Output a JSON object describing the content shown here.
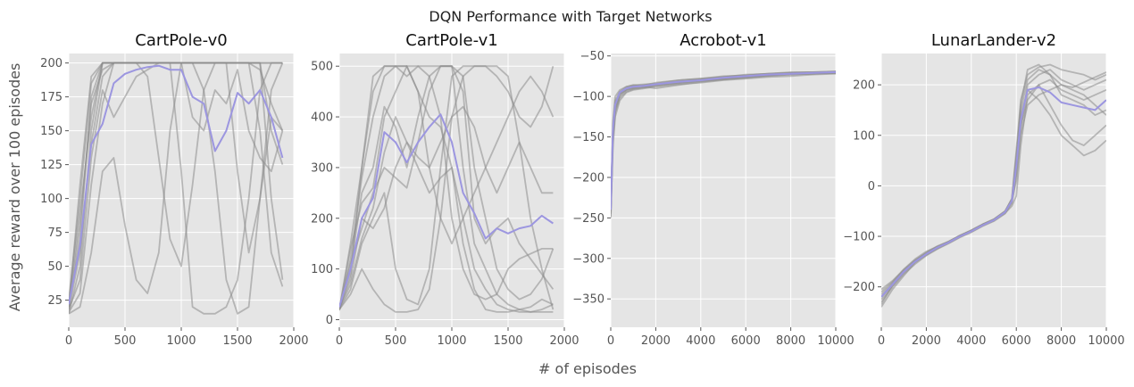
{
  "figure": {
    "suptitle": "DQN Performance with Target Networks",
    "xlabel": "# of episodes",
    "ylabel": "Average reward over 100 episodes"
  },
  "colors": {
    "panel_bg": "#e5e5e5",
    "grid": "#ffffff",
    "run_line": "#8c8c8c",
    "mean_line": "#9c96e0",
    "tick_text": "#555555"
  },
  "chart_data": [
    {
      "type": "line",
      "title": "CartPole-v0",
      "xlim": [
        0,
        2000
      ],
      "ylim": [
        5,
        207
      ],
      "xticks": [
        0,
        500,
        1000,
        1500,
        2000
      ],
      "xtick_labels": [
        "0",
        "500",
        "1000",
        "1500",
        "2000"
      ],
      "yticks": [
        25,
        50,
        75,
        100,
        125,
        150,
        175,
        200
      ],
      "ytick_labels": [
        "25",
        "50",
        "75",
        "100",
        "125",
        "150",
        "175",
        "200"
      ],
      "grid": true,
      "x": [
        0,
        100,
        200,
        300,
        400,
        500,
        600,
        700,
        800,
        900,
        1000,
        1100,
        1200,
        1300,
        1400,
        1500,
        1600,
        1700,
        1800,
        1900
      ],
      "mean_series": {
        "values": [
          22,
          65,
          140,
          155,
          185,
          192,
          195,
          197,
          198,
          195,
          195,
          175,
          170,
          135,
          150,
          178,
          170,
          180,
          160,
          130
        ]
      },
      "runs": [
        {
          "values": [
            20,
            80,
            170,
            195,
            200,
            200,
            200,
            200,
            200,
            200,
            200,
            200,
            200,
            200,
            200,
            200,
            200,
            200,
            200,
            200
          ]
        },
        {
          "values": [
            18,
            60,
            140,
            190,
            200,
            200,
            200,
            200,
            200,
            200,
            200,
            200,
            200,
            200,
            200,
            200,
            200,
            195,
            170,
            150
          ]
        },
        {
          "values": [
            16,
            30,
            110,
            170,
            200,
            200,
            200,
            200,
            200,
            200,
            120,
            20,
            15,
            15,
            20,
            40,
            100,
            180,
            200,
            200
          ]
        },
        {
          "values": [
            25,
            100,
            185,
            200,
            200,
            200,
            200,
            200,
            200,
            200,
            200,
            200,
            200,
            200,
            200,
            200,
            200,
            200,
            100,
            40
          ]
        },
        {
          "values": [
            15,
            20,
            60,
            120,
            130,
            80,
            40,
            30,
            60,
            150,
            200,
            200,
            200,
            200,
            200,
            200,
            200,
            150,
            60,
            35
          ]
        },
        {
          "values": [
            20,
            110,
            190,
            200,
            200,
            200,
            200,
            200,
            200,
            200,
            200,
            200,
            180,
            120,
            40,
            15,
            20,
            100,
            180,
            200
          ]
        },
        {
          "values": [
            22,
            90,
            160,
            200,
            200,
            200,
            200,
            200,
            200,
            200,
            200,
            200,
            200,
            200,
            200,
            200,
            200,
            200,
            150,
            125
          ]
        },
        {
          "values": [
            18,
            40,
            130,
            180,
            160,
            175,
            190,
            195,
            200,
            200,
            200,
            160,
            150,
            180,
            170,
            195,
            150,
            130,
            120,
            150
          ]
        },
        {
          "values": [
            15,
            50,
            150,
            200,
            200,
            200,
            200,
            190,
            130,
            70,
            50,
            110,
            180,
            200,
            200,
            200,
            200,
            200,
            200,
            200
          ]
        },
        {
          "values": [
            20,
            70,
            175,
            200,
            200,
            200,
            200,
            200,
            200,
            200,
            200,
            200,
            200,
            200,
            200,
            120,
            60,
            100,
            160,
            150
          ]
        }
      ]
    },
    {
      "type": "line",
      "title": "CartPole-v1",
      "xlim": [
        0,
        2000
      ],
      "ylim": [
        -15,
        525
      ],
      "xticks": [
        0,
        500,
        1000,
        1500,
        2000
      ],
      "xtick_labels": [
        "0",
        "500",
        "1000",
        "1500",
        "2000"
      ],
      "yticks": [
        0,
        100,
        200,
        300,
        400,
        500
      ],
      "ytick_labels": [
        "0",
        "100",
        "200",
        "300",
        "400",
        "500"
      ],
      "grid": true,
      "x": [
        0,
        100,
        200,
        300,
        400,
        500,
        600,
        700,
        800,
        900,
        1000,
        1100,
        1200,
        1300,
        1400,
        1500,
        1600,
        1700,
        1800,
        1900
      ],
      "mean_series": {
        "values": [
          25,
          100,
          200,
          240,
          370,
          350,
          310,
          350,
          380,
          405,
          350,
          250,
          210,
          160,
          180,
          170,
          180,
          185,
          205,
          190
        ]
      },
      "runs": [
        {
          "values": [
            20,
            150,
            300,
            450,
            500,
            500,
            480,
            500,
            500,
            500,
            500,
            300,
            150,
            100,
            50,
            30,
            20,
            25,
            40,
            30
          ]
        },
        {
          "values": [
            25,
            100,
            250,
            300,
            420,
            380,
            300,
            400,
            480,
            500,
            500,
            480,
            300,
            200,
            100,
            60,
            40,
            50,
            80,
            140
          ]
        },
        {
          "values": [
            20,
            60,
            150,
            200,
            250,
            100,
            40,
            30,
            100,
            300,
            480,
            500,
            500,
            500,
            500,
            480,
            350,
            200,
            100,
            20
          ]
        },
        {
          "values": [
            18,
            120,
            280,
            400,
            480,
            500,
            500,
            450,
            400,
            380,
            300,
            150,
            60,
            20,
            15,
            15,
            20,
            15,
            15,
            15
          ]
        },
        {
          "values": [
            22,
            80,
            200,
            180,
            220,
            300,
            350,
            320,
            300,
            350,
            400,
            420,
            380,
            300,
            250,
            300,
            350,
            300,
            250,
            250
          ]
        },
        {
          "values": [
            20,
            140,
            230,
            260,
            400,
            450,
            500,
            500,
            480,
            400,
            200,
            100,
            50,
            40,
            50,
            100,
            120,
            130,
            140,
            140
          ]
        },
        {
          "values": [
            20,
            50,
            100,
            60,
            30,
            15,
            15,
            20,
            60,
            200,
            400,
            480,
            500,
            500,
            480,
            450,
            400,
            380,
            420,
            500
          ]
        },
        {
          "values": [
            25,
            110,
            180,
            250,
            300,
            280,
            260,
            350,
            450,
            500,
            500,
            450,
            200,
            150,
            180,
            200,
            150,
            120,
            90,
            60
          ]
        },
        {
          "values": [
            20,
            90,
            300,
            480,
            500,
            500,
            500,
            450,
            300,
            200,
            150,
            200,
            250,
            300,
            350,
            400,
            450,
            480,
            450,
            400
          ]
        },
        {
          "values": [
            22,
            70,
            160,
            220,
            330,
            400,
            350,
            300,
            250,
            280,
            300,
            200,
            100,
            60,
            30,
            20,
            15,
            15,
            20,
            30
          ]
        }
      ]
    },
    {
      "type": "line",
      "title": "Acrobot-v1",
      "xlim": [
        0,
        10000
      ],
      "ylim": [
        -385,
        -47
      ],
      "xticks": [
        0,
        2000,
        4000,
        6000,
        8000,
        10000
      ],
      "xtick_labels": [
        "0",
        "2000",
        "4000",
        "6000",
        "8000",
        "10000"
      ],
      "yticks": [
        -350,
        -300,
        -250,
        -200,
        -150,
        -100,
        -50
      ],
      "ytick_labels": [
        "−350",
        "−300",
        "−250",
        "−200",
        "−150",
        "−100",
        "−50"
      ],
      "grid": true,
      "x": [
        0,
        100,
        200,
        400,
        700,
        1000,
        1500,
        2000,
        3000,
        4000,
        5000,
        6000,
        7000,
        8000,
        9000,
        10000
      ],
      "mean_series": {
        "values": [
          -240,
          -140,
          -110,
          -95,
          -90,
          -88,
          -87,
          -85,
          -82,
          -80,
          -77,
          -75,
          -73,
          -72,
          -71,
          -70
        ]
      },
      "runs": [
        {
          "values": [
            -250,
            -150,
            -115,
            -100,
            -92,
            -90,
            -88,
            -86,
            -83,
            -81,
            -78,
            -76,
            -74,
            -72,
            -71,
            -71
          ]
        },
        {
          "values": [
            -230,
            -130,
            -100,
            -92,
            -88,
            -86,
            -85,
            -84,
            -80,
            -78,
            -76,
            -74,
            -72,
            -70,
            -70,
            -69
          ]
        },
        {
          "values": [
            -245,
            -160,
            -125,
            -105,
            -95,
            -92,
            -90,
            -88,
            -85,
            -83,
            -80,
            -78,
            -76,
            -75,
            -73,
            -72
          ]
        },
        {
          "values": [
            -235,
            -145,
            -108,
            -96,
            -90,
            -87,
            -86,
            -85,
            -82,
            -79,
            -76,
            -73,
            -72,
            -71,
            -70,
            -70
          ]
        },
        {
          "values": [
            -240,
            -135,
            -105,
            -94,
            -88,
            -86,
            -88,
            -90,
            -86,
            -82,
            -79,
            -77,
            -74,
            -73,
            -72,
            -71
          ]
        },
        {
          "values": [
            -248,
            -155,
            -118,
            -98,
            -91,
            -89,
            -86,
            -83,
            -80,
            -78,
            -75,
            -74,
            -72,
            -71,
            -70,
            -69
          ]
        },
        {
          "values": [
            -238,
            -140,
            -112,
            -97,
            -92,
            -90,
            -89,
            -87,
            -84,
            -80,
            -78,
            -75,
            -74,
            -72,
            -72,
            -70
          ]
        },
        {
          "values": [
            -242,
            -150,
            -120,
            -102,
            -94,
            -91,
            -89,
            -86,
            -83,
            -81,
            -79,
            -77,
            -75,
            -73,
            -72,
            -71
          ]
        }
      ]
    },
    {
      "type": "line",
      "title": "LunarLander-v2",
      "xlim": [
        0,
        10000
      ],
      "ylim": [
        -280,
        262
      ],
      "xticks": [
        0,
        2000,
        4000,
        6000,
        8000,
        10000
      ],
      "xtick_labels": [
        "0",
        "2000",
        "4000",
        "6000",
        "8000",
        "10000"
      ],
      "yticks": [
        -200,
        -100,
        0,
        100,
        200
      ],
      "ytick_labels": [
        "−200",
        "−100",
        "0",
        "100",
        "200"
      ],
      "grid": true,
      "x": [
        0,
        500,
        1000,
        1500,
        2000,
        2500,
        3000,
        3500,
        4000,
        4500,
        5000,
        5500,
        5800,
        6000,
        6200,
        6500,
        7000,
        7500,
        8000,
        8500,
        9000,
        9500,
        10000
      ],
      "mean_series": {
        "values": [
          -220,
          -195,
          -170,
          -150,
          -135,
          -122,
          -112,
          -100,
          -90,
          -78,
          -68,
          -52,
          -30,
          40,
          130,
          190,
          195,
          185,
          165,
          160,
          155,
          150,
          170
        ]
      },
      "runs": [
        {
          "values": [
            -230,
            -200,
            -175,
            -155,
            -138,
            -125,
            -114,
            -102,
            -92,
            -80,
            -70,
            -55,
            -35,
            20,
            110,
            200,
            220,
            230,
            210,
            200,
            190,
            200,
            210
          ]
        },
        {
          "values": [
            -210,
            -190,
            -165,
            -145,
            -130,
            -120,
            -110,
            -98,
            -88,
            -76,
            -66,
            -50,
            -28,
            60,
            150,
            210,
            230,
            220,
            180,
            170,
            160,
            140,
            150
          ]
        },
        {
          "values": [
            -240,
            -205,
            -178,
            -152,
            -136,
            -124,
            -113,
            -101,
            -91,
            -79,
            -69,
            -54,
            -40,
            -20,
            80,
            180,
            200,
            160,
            120,
            90,
            80,
            100,
            120
          ]
        },
        {
          "values": [
            -215,
            -192,
            -168,
            -148,
            -134,
            -121,
            -111,
            -99,
            -89,
            -77,
            -67,
            -51,
            -25,
            70,
            170,
            220,
            235,
            240,
            230,
            225,
            220,
            210,
            220
          ]
        },
        {
          "values": [
            -225,
            -198,
            -172,
            -151,
            -137,
            -123,
            -112,
            -100,
            -90,
            -78,
            -68,
            -53,
            -32,
            30,
            140,
            190,
            170,
            140,
            100,
            80,
            60,
            70,
            90
          ]
        },
        {
          "values": [
            -220,
            -194,
            -170,
            -150,
            -135,
            -122,
            -112,
            -100,
            -90,
            -78,
            -67,
            -52,
            -30,
            50,
            120,
            170,
            200,
            210,
            190,
            180,
            170,
            180,
            190
          ]
        },
        {
          "values": [
            -235,
            -196,
            -171,
            -149,
            -133,
            -121,
            -111,
            -99,
            -89,
            -77,
            -68,
            -52,
            -30,
            10,
            100,
            160,
            180,
            190,
            200,
            190,
            180,
            160,
            140
          ]
        },
        {
          "values": [
            -205,
            -188,
            -166,
            -147,
            -132,
            -119,
            -110,
            -98,
            -88,
            -76,
            -66,
            -50,
            -26,
            55,
            160,
            230,
            240,
            220,
            200,
            195,
            205,
            215,
            225
          ]
        }
      ]
    }
  ]
}
